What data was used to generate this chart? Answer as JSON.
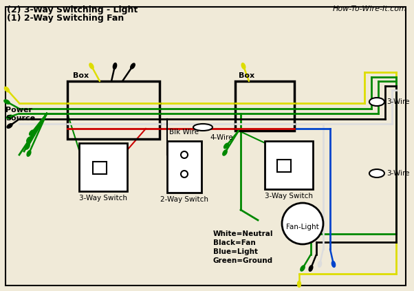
{
  "title1": "(2) 3-Way Switching - Light",
  "title2": "(1) 2-Way Switching Fan",
  "watermark": "How-To-Wire-It.com",
  "bg_color": "#f0ead8",
  "wire_colors": {
    "yellow": "#dddd00",
    "green": "#008800",
    "black": "#000000",
    "white": "#dddddd",
    "red": "#cc0000",
    "blue": "#0044cc"
  },
  "labels": {
    "power_source": "Power\nSource",
    "box1": "Box",
    "box2": "Box",
    "switch1": "3-Way Switch",
    "switch2": "2-Way Switch",
    "switch3": "3-Way Switch",
    "fan_light": "Fan-Light",
    "four_wire": "4-Wire",
    "blk_wire": "Blk Wire",
    "three_wire1": "3-Wire",
    "three_wire2": "3-Wire",
    "legend1": "White=Neutral",
    "legend2": "Black=Fan",
    "legend3": "Blue=Light",
    "legend4": "Green=Ground"
  }
}
